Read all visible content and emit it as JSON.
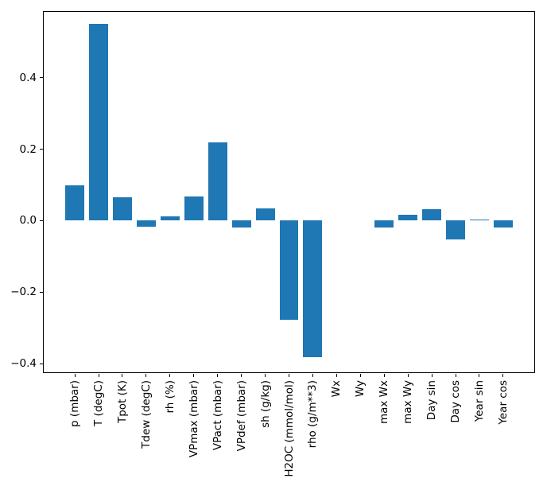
{
  "figure": {
    "background": "#ffffff",
    "spine_color": "#000000",
    "tick_color": "#000000"
  },
  "chart_data": {
    "type": "bar",
    "title": "",
    "xlabel": "",
    "ylabel": "",
    "bar_color": "#1f77b4",
    "grid": false,
    "legend": null,
    "categories": [
      "p (mbar)",
      "T (degC)",
      "Tpot (K)",
      "Tdew (degC)",
      "rh (%)",
      "VPmax (mbar)",
      "VPact (mbar)",
      "VPdef (mbar)",
      "sh (g/kg)",
      "H2OC (mmol/mol)",
      "rho (g/m**3)",
      "Wx",
      "Wy",
      "max Wx",
      "max Wy",
      "Day sin",
      "Day cos",
      "Year sin",
      "Year cos"
    ],
    "values": [
      0.1,
      0.55,
      0.065,
      -0.016,
      0.012,
      0.068,
      0.22,
      -0.02,
      0.034,
      -0.276,
      -0.382,
      0.0,
      0.0,
      -0.018,
      0.017,
      0.033,
      -0.053,
      0.004,
      -0.018
    ],
    "ylim": [
      -0.4256,
      0.5856
    ],
    "yticks": [
      -0.4,
      -0.2,
      0.0,
      0.2,
      0.4
    ],
    "ytick_labels": [
      "−0.4",
      "−0.2",
      "0.0",
      "0.2",
      "0.4"
    ],
    "xlim": [
      -1.34,
      19.34
    ],
    "bar_width_units": 0.8
  }
}
